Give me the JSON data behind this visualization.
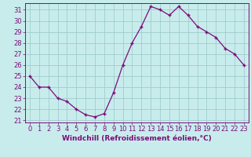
{
  "x": [
    0,
    1,
    2,
    3,
    4,
    5,
    6,
    7,
    8,
    9,
    10,
    11,
    12,
    13,
    14,
    15,
    16,
    17,
    18,
    19,
    20,
    21,
    22,
    23
  ],
  "y": [
    25,
    24,
    24,
    23,
    22.7,
    22,
    21.5,
    21.3,
    21.6,
    23.5,
    26.0,
    28.0,
    29.5,
    31.3,
    31.0,
    30.5,
    31.3,
    30.5,
    29.5,
    29.0,
    28.5,
    27.5,
    27.0,
    26.0
  ],
  "line_color": "#7b0d7b",
  "bg_color": "#c8ecec",
  "grid_color": "#a0cccc",
  "xlabel": "Windchill (Refroidissement éolien,°C)",
  "ylabel_ticks": [
    21,
    22,
    23,
    24,
    25,
    26,
    27,
    28,
    29,
    30,
    31
  ],
  "ylim": [
    20.8,
    31.6
  ],
  "xlim": [
    -0.5,
    23.5
  ],
  "tick_color": "#7b0d7b",
  "label_color": "#7b0d7b",
  "tick_fontsize": 6.0,
  "xlabel_fontsize": 6.5
}
